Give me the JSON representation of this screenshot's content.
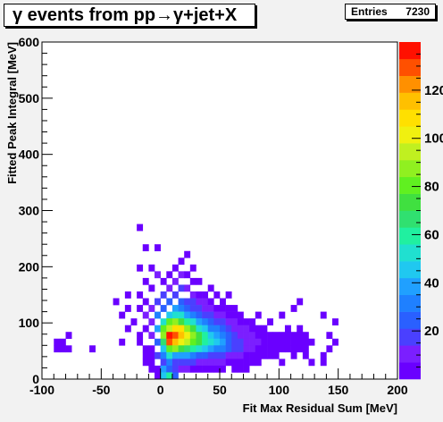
{
  "chart_data": {
    "type": "heatmap",
    "title": "γ events from pp→γ+jet+X",
    "stats": {
      "label": "Entries",
      "value": "7230"
    },
    "xlabel": "Fit Max Residual Sum [MeV]",
    "ylabel": "Fitted Peak Integral [MeV]",
    "xlim": [
      -100,
      200
    ],
    "ylim": [
      0,
      600
    ],
    "x_ticks": [
      -100,
      -50,
      0,
      50,
      100,
      150,
      200
    ],
    "y_ticks": [
      0,
      100,
      200,
      300,
      400,
      500,
      600
    ],
    "bin_width_x": 5,
    "bin_width_y": 12,
    "zlim": [
      0,
      140
    ],
    "z_ticks": [
      20,
      40,
      60,
      80,
      100,
      120
    ],
    "z_tick_labels": [
      "20",
      "40",
      "60",
      "80",
      "100",
      "120"
    ],
    "palette": [
      "#6a00ff",
      "#7b1fff",
      "#4a40ff",
      "#2a60ff",
      "#1f80ff",
      "#20a0ff",
      "#20c8f0",
      "#20e0d0",
      "#20f0a0",
      "#30e070",
      "#40e040",
      "#60f020",
      "#90f020",
      "#c0f020",
      "#f0f010",
      "#ffe000",
      "#ffc000",
      "#ff9000",
      "#ff5000",
      "#ff1000"
    ],
    "bins": [
      [
        -90,
        48,
        1
      ],
      [
        -90,
        60,
        2
      ],
      [
        -85,
        60,
        1
      ],
      [
        -85,
        48,
        2
      ],
      [
        -80,
        48,
        1
      ],
      [
        -80,
        72,
        1
      ],
      [
        -60,
        48,
        1
      ],
      [
        -40,
        132,
        1
      ],
      [
        -35,
        108,
        1
      ],
      [
        -35,
        60,
        1
      ],
      [
        -30,
        144,
        2
      ],
      [
        -30,
        120,
        3
      ],
      [
        -30,
        84,
        1
      ],
      [
        -25,
        96,
        2
      ],
      [
        -20,
        192,
        1
      ],
      [
        -20,
        144,
        3
      ],
      [
        -20,
        120,
        4
      ],
      [
        -20,
        72,
        2
      ],
      [
        -20,
        60,
        1
      ],
      [
        -20,
        264,
        1
      ],
      [
        -15,
        228,
        2
      ],
      [
        -15,
        168,
        4
      ],
      [
        -15,
        132,
        5
      ],
      [
        -15,
        108,
        8
      ],
      [
        -15,
        84,
        4
      ],
      [
        -15,
        48,
        1
      ],
      [
        -15,
        36,
        3
      ],
      [
        -15,
        24,
        2
      ],
      [
        -10,
        192,
        3
      ],
      [
        -10,
        156,
        6
      ],
      [
        -10,
        120,
        8
      ],
      [
        -10,
        96,
        12
      ],
      [
        -10,
        72,
        10
      ],
      [
        -10,
        48,
        4
      ],
      [
        -10,
        36,
        5
      ],
      [
        -10,
        24,
        3
      ],
      [
        -10,
        12,
        6
      ],
      [
        -5,
        228,
        3
      ],
      [
        -5,
        180,
        7
      ],
      [
        -5,
        132,
        16
      ],
      [
        -5,
        108,
        30
      ],
      [
        -5,
        84,
        40
      ],
      [
        -5,
        60,
        26
      ],
      [
        -5,
        36,
        15
      ],
      [
        -5,
        12,
        5
      ],
      [
        -5,
        0,
        3
      ],
      [
        0,
        168,
        4
      ],
      [
        0,
        144,
        15
      ],
      [
        0,
        120,
        22
      ],
      [
        0,
        96,
        55
      ],
      [
        0,
        84,
        78
      ],
      [
        0,
        72,
        88
      ],
      [
        0,
        60,
        65
      ],
      [
        0,
        48,
        45
      ],
      [
        0,
        36,
        32
      ],
      [
        0,
        24,
        20
      ],
      [
        0,
        12,
        35
      ],
      [
        0,
        0,
        48
      ],
      [
        5,
        180,
        5
      ],
      [
        5,
        156,
        12
      ],
      [
        5,
        132,
        25
      ],
      [
        5,
        108,
        45
      ],
      [
        5,
        96,
        78
      ],
      [
        5,
        84,
        95
      ],
      [
        5,
        72,
        140
      ],
      [
        5,
        60,
        130
      ],
      [
        5,
        48,
        80
      ],
      [
        5,
        36,
        50
      ],
      [
        5,
        24,
        28
      ],
      [
        5,
        12,
        25
      ],
      [
        5,
        0,
        60
      ],
      [
        10,
        192,
        6
      ],
      [
        10,
        168,
        9
      ],
      [
        10,
        144,
        18
      ],
      [
        10,
        120,
        35
      ],
      [
        10,
        108,
        55
      ],
      [
        10,
        96,
        85
      ],
      [
        10,
        84,
        110
      ],
      [
        10,
        72,
        128
      ],
      [
        10,
        60,
        118
      ],
      [
        10,
        48,
        90
      ],
      [
        10,
        36,
        40
      ],
      [
        10,
        24,
        20
      ],
      [
        10,
        12,
        18
      ],
      [
        10,
        0,
        22
      ],
      [
        15,
        204,
        4
      ],
      [
        15,
        180,
        7
      ],
      [
        15,
        156,
        14
      ],
      [
        15,
        132,
        22
      ],
      [
        15,
        120,
        30
      ],
      [
        15,
        108,
        50
      ],
      [
        15,
        96,
        75
      ],
      [
        15,
        84,
        105
      ],
      [
        15,
        72,
        112
      ],
      [
        15,
        60,
        98
      ],
      [
        15,
        48,
        70
      ],
      [
        15,
        36,
        38
      ],
      [
        15,
        24,
        18
      ],
      [
        15,
        12,
        9
      ],
      [
        20,
        216,
        3
      ],
      [
        20,
        180,
        5
      ],
      [
        20,
        156,
        8
      ],
      [
        20,
        132,
        15
      ],
      [
        20,
        120,
        22
      ],
      [
        20,
        108,
        40
      ],
      [
        20,
        96,
        60
      ],
      [
        20,
        84,
        90
      ],
      [
        20,
        72,
        100
      ],
      [
        20,
        60,
        92
      ],
      [
        20,
        48,
        65
      ],
      [
        20,
        36,
        35
      ],
      [
        20,
        24,
        16
      ],
      [
        20,
        12,
        7
      ],
      [
        25,
        192,
        4
      ],
      [
        25,
        168,
        6
      ],
      [
        25,
        144,
        10
      ],
      [
        25,
        132,
        14
      ],
      [
        25,
        120,
        20
      ],
      [
        25,
        108,
        30
      ],
      [
        25,
        96,
        50
      ],
      [
        25,
        84,
        75
      ],
      [
        25,
        72,
        85
      ],
      [
        25,
        60,
        80
      ],
      [
        25,
        48,
        58
      ],
      [
        25,
        36,
        30
      ],
      [
        25,
        24,
        14
      ],
      [
        25,
        12,
        6
      ],
      [
        30,
        168,
        3
      ],
      [
        30,
        144,
        6
      ],
      [
        30,
        132,
        10
      ],
      [
        30,
        120,
        15
      ],
      [
        30,
        108,
        22
      ],
      [
        30,
        96,
        38
      ],
      [
        30,
        84,
        55
      ],
      [
        30,
        72,
        70
      ],
      [
        30,
        60,
        74
      ],
      [
        30,
        48,
        52
      ],
      [
        30,
        36,
        26
      ],
      [
        30,
        24,
        12
      ],
      [
        30,
        12,
        5
      ],
      [
        35,
        144,
        5
      ],
      [
        35,
        132,
        7
      ],
      [
        35,
        120,
        12
      ],
      [
        35,
        108,
        18
      ],
      [
        35,
        96,
        30
      ],
      [
        35,
        84,
        45
      ],
      [
        35,
        72,
        58
      ],
      [
        35,
        60,
        62
      ],
      [
        35,
        48,
        45
      ],
      [
        35,
        36,
        22
      ],
      [
        35,
        24,
        10
      ],
      [
        35,
        12,
        4
      ],
      [
        40,
        156,
        3
      ],
      [
        40,
        132,
        5
      ],
      [
        40,
        120,
        8
      ],
      [
        40,
        108,
        14
      ],
      [
        40,
        96,
        22
      ],
      [
        40,
        84,
        34
      ],
      [
        40,
        72,
        48
      ],
      [
        40,
        60,
        52
      ],
      [
        40,
        48,
        40
      ],
      [
        40,
        36,
        20
      ],
      [
        40,
        24,
        9
      ],
      [
        40,
        12,
        4
      ],
      [
        45,
        144,
        4
      ],
      [
        45,
        120,
        6
      ],
      [
        45,
        108,
        10
      ],
      [
        45,
        96,
        18
      ],
      [
        45,
        84,
        28
      ],
      [
        45,
        72,
        38
      ],
      [
        45,
        60,
        46
      ],
      [
        45,
        48,
        34
      ],
      [
        45,
        36,
        18
      ],
      [
        45,
        24,
        8
      ],
      [
        45,
        12,
        3
      ],
      [
        50,
        132,
        3
      ],
      [
        50,
        120,
        5
      ],
      [
        50,
        108,
        8
      ],
      [
        50,
        96,
        14
      ],
      [
        50,
        84,
        22
      ],
      [
        50,
        72,
        30
      ],
      [
        50,
        60,
        36
      ],
      [
        50,
        48,
        28
      ],
      [
        50,
        36,
        16
      ],
      [
        50,
        24,
        7
      ],
      [
        50,
        12,
        3
      ],
      [
        55,
        144,
        2
      ],
      [
        55,
        120,
        4
      ],
      [
        55,
        108,
        6
      ],
      [
        55,
        96,
        10
      ],
      [
        55,
        84,
        16
      ],
      [
        55,
        72,
        22
      ],
      [
        55,
        60,
        26
      ],
      [
        55,
        48,
        22
      ],
      [
        55,
        36,
        12
      ],
      [
        55,
        24,
        6
      ],
      [
        60,
        120,
        3
      ],
      [
        60,
        108,
        5
      ],
      [
        60,
        96,
        8
      ],
      [
        60,
        84,
        12
      ],
      [
        60,
        72,
        16
      ],
      [
        60,
        60,
        20
      ],
      [
        60,
        48,
        18
      ],
      [
        60,
        36,
        10
      ],
      [
        60,
        24,
        5
      ],
      [
        60,
        12,
        2
      ],
      [
        65,
        108,
        4
      ],
      [
        65,
        96,
        6
      ],
      [
        65,
        84,
        9
      ],
      [
        65,
        72,
        12
      ],
      [
        65,
        60,
        15
      ],
      [
        65,
        48,
        14
      ],
      [
        65,
        36,
        8
      ],
      [
        65,
        24,
        4
      ],
      [
        65,
        12,
        2
      ],
      [
        70,
        96,
        5
      ],
      [
        70,
        84,
        7
      ],
      [
        70,
        72,
        9
      ],
      [
        70,
        60,
        12
      ],
      [
        70,
        48,
        11
      ],
      [
        70,
        36,
        6
      ],
      [
        70,
        24,
        3
      ],
      [
        70,
        12,
        2
      ],
      [
        75,
        96,
        3
      ],
      [
        75,
        84,
        5
      ],
      [
        75,
        72,
        7
      ],
      [
        75,
        60,
        9
      ],
      [
        75,
        48,
        8
      ],
      [
        75,
        36,
        5
      ],
      [
        75,
        24,
        2
      ],
      [
        80,
        108,
        2
      ],
      [
        80,
        84,
        4
      ],
      [
        80,
        72,
        5
      ],
      [
        80,
        60,
        7
      ],
      [
        80,
        48,
        6
      ],
      [
        80,
        36,
        4
      ],
      [
        80,
        24,
        2
      ],
      [
        85,
        84,
        3
      ],
      [
        85,
        72,
        4
      ],
      [
        85,
        60,
        5
      ],
      [
        85,
        48,
        4
      ],
      [
        85,
        36,
        3
      ],
      [
        90,
        96,
        2
      ],
      [
        90,
        72,
        3
      ],
      [
        90,
        60,
        4
      ],
      [
        90,
        48,
        3
      ],
      [
        90,
        36,
        2
      ],
      [
        95,
        72,
        2
      ],
      [
        95,
        60,
        3
      ],
      [
        95,
        48,
        3
      ],
      [
        95,
        36,
        2
      ],
      [
        100,
        108,
        1
      ],
      [
        100,
        72,
        2
      ],
      [
        100,
        60,
        2
      ],
      [
        100,
        48,
        2
      ],
      [
        100,
        24,
        1
      ],
      [
        105,
        84,
        1
      ],
      [
        105,
        72,
        2
      ],
      [
        105,
        60,
        2
      ],
      [
        105,
        48,
        1
      ],
      [
        110,
        120,
        1
      ],
      [
        110,
        72,
        1
      ],
      [
        110,
        60,
        2
      ],
      [
        110,
        48,
        1
      ],
      [
        110,
        36,
        1
      ],
      [
        115,
        132,
        1
      ],
      [
        115,
        84,
        1
      ],
      [
        115,
        72,
        1
      ],
      [
        115,
        60,
        1
      ],
      [
        115,
        48,
        1
      ],
      [
        120,
        72,
        1
      ],
      [
        120,
        60,
        1
      ],
      [
        120,
        48,
        1
      ],
      [
        120,
        36,
        1
      ],
      [
        125,
        60,
        1
      ],
      [
        125,
        24,
        1
      ],
      [
        135,
        108,
        1
      ],
      [
        135,
        36,
        1
      ],
      [
        135,
        24,
        1
      ],
      [
        140,
        72,
        1
      ],
      [
        140,
        48,
        1
      ],
      [
        145,
        96,
        1
      ],
      [
        145,
        60,
        1
      ]
    ]
  }
}
